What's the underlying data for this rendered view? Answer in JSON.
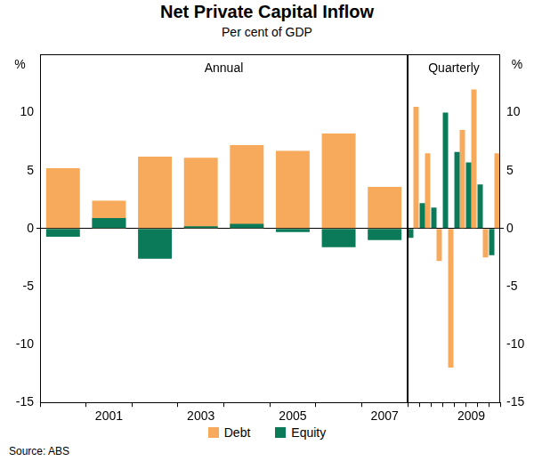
{
  "title": "Net Private Capital Inflow",
  "subtitle": "Per cent of GDP",
  "source": "Source: ABS",
  "chart_data": [
    {
      "type": "bar",
      "title": "Annual",
      "y_label": "%",
      "categories": [
        null,
        "2001",
        null,
        "2003",
        null,
        "2005",
        null,
        "2007"
      ],
      "series": [
        {
          "name": "Debt",
          "color": "#f8aa5c",
          "values": [
            5.2,
            2.4,
            6.2,
            6.1,
            7.2,
            6.7,
            8.2,
            3.6
          ]
        },
        {
          "name": "Equity",
          "color": "#0b7a58",
          "values": [
            -0.7,
            0.9,
            -2.6,
            0.2,
            0.4,
            -0.3,
            -1.6,
            -1.0
          ]
        }
      ],
      "ylim": [
        -15,
        15
      ],
      "yticks": [
        -15,
        -10,
        -5,
        0,
        5,
        10
      ],
      "grid": false,
      "legend": "bottom"
    },
    {
      "type": "bar",
      "title": "Quarterly",
      "y_label": "%",
      "categories": [
        null,
        null,
        null,
        null,
        null,
        "2009",
        null,
        null
      ],
      "series": [
        {
          "name": "Debt",
          "color": "#f8aa5c",
          "values": [
            10.5,
            6.5,
            -2.8,
            -12.0,
            8.5,
            12.0,
            -2.5,
            6.5
          ]
        },
        {
          "name": "Equity",
          "color": "#0b7a58",
          "values": [
            -0.8,
            2.2,
            1.8,
            10.0,
            6.6,
            5.7,
            3.8,
            -2.3
          ]
        }
      ],
      "ylim": [
        -15,
        15
      ],
      "yticks": [
        -15,
        -10,
        -5,
        0,
        5,
        10
      ],
      "grid": false
    }
  ]
}
